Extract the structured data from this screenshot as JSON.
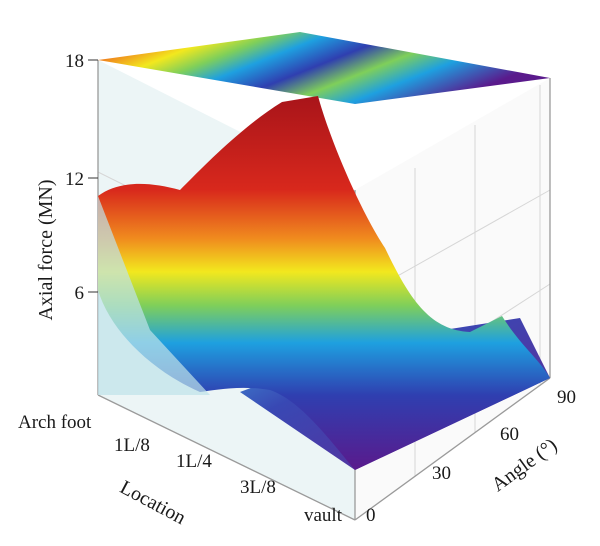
{
  "chart_data": {
    "type": "surface3d",
    "title": "",
    "zlabel": "Axial force (MN)",
    "xlabel": "Location",
    "ylabel": "Angle (°)",
    "z_ticks": [
      "6",
      "12",
      "18"
    ],
    "zlim": [
      0,
      18
    ],
    "location_ticks": [
      "Arch foot",
      "1L/8",
      "1L/4",
      "3L/8",
      "vault"
    ],
    "angle_ticks": [
      "0",
      "30",
      "60",
      "90"
    ],
    "ylim": [
      0,
      90
    ],
    "colormap": [
      "#5a1a8c",
      "#2f3fb0",
      "#1ea0e0",
      "#7fcf5a",
      "#f2e81e",
      "#f08a1e",
      "#d8281c",
      "#a8141a"
    ],
    "surface_locations": [
      "Arch foot",
      "1L/8",
      "1L/4",
      "3L/8",
      "vault"
    ],
    "surface_front_angle_0": [
      11.0,
      10.2,
      7.5,
      3.5,
      1.5
    ],
    "surface_back_angle_90": [
      16.5,
      16.8,
      7.0,
      2.6,
      2.2
    ]
  }
}
